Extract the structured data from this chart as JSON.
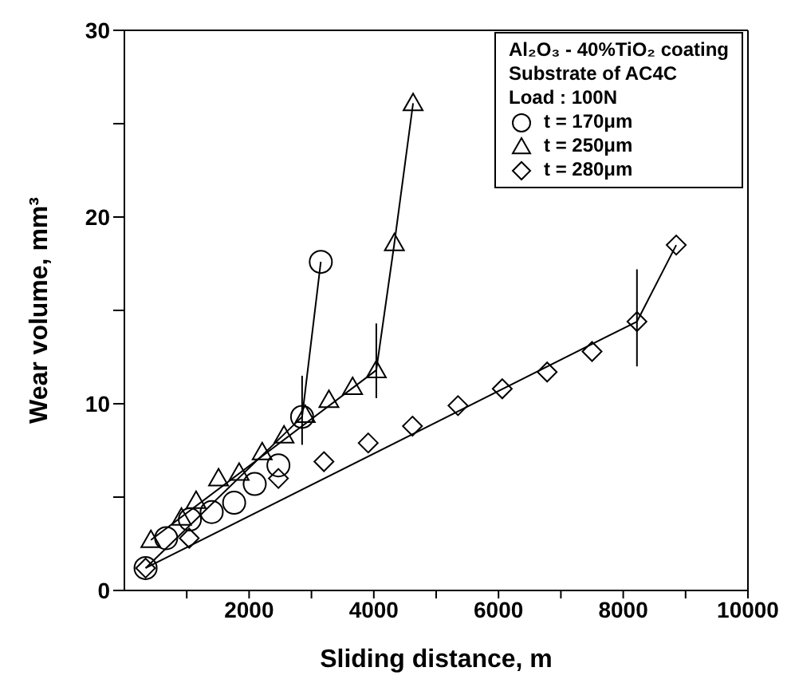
{
  "chart_data": {
    "type": "scatter",
    "xlabel": "Sliding distance, m",
    "ylabel": "Wear volume, mm³",
    "legend_title": "Al₂O₃ - 40%TiO₂ coating\nSubstrate of AC4C\nLoad : 100N",
    "legend": "top right",
    "grid": false,
    "xlim": [
      0,
      10000
    ],
    "ylim": [
      0,
      30
    ],
    "xticks": [
      {
        "value": 1000,
        "label": null
      },
      2000,
      {
        "value": 3000,
        "label": null
      },
      4000,
      {
        "value": 5000,
        "label": null
      },
      6000,
      {
        "value": 7000,
        "label": null
      },
      8000,
      {
        "value": 9000,
        "label": null
      },
      10000
    ],
    "yticks": [
      0,
      {
        "value": 5,
        "label": null
      },
      10,
      {
        "value": 15,
        "label": null
      },
      20,
      {
        "value": 25,
        "label": null
      },
      30
    ],
    "series": [
      {
        "name": "t = 170μm",
        "marker": "circle",
        "color": "#000000",
        "x": [
          340,
          670,
          1050,
          1400,
          1760,
          2090,
          2470,
          2850,
          3150
        ],
        "values": [
          1.2,
          2.8,
          3.8,
          4.2,
          4.7,
          5.7,
          6.7,
          9.3,
          17.6
        ],
        "errors": [
          null,
          null,
          null,
          null,
          null,
          null,
          null,
          [
            7.8,
            11.5
          ],
          null
        ]
      },
      {
        "name": "t = 250μm",
        "marker": "triangle",
        "color": "#000000",
        "x": [
          425,
          915,
          1150,
          1510,
          1840,
          2210,
          2560,
          2900,
          3280,
          3660,
          4040,
          4330,
          4630
        ],
        "values": [
          2.7,
          3.9,
          4.8,
          6.0,
          6.3,
          7.4,
          8.3,
          9.4,
          10.2,
          10.9,
          11.8,
          18.6,
          26.1
        ],
        "errors": [
          null,
          null,
          null,
          null,
          null,
          null,
          null,
          null,
          null,
          null,
          [
            10.3,
            14.3
          ],
          null,
          null
        ]
      },
      {
        "name": "t = 280μm",
        "marker": "diamond",
        "color": "#000000",
        "x": [
          340,
          1040,
          2470,
          3200,
          3910,
          4620,
          5350,
          6060,
          6780,
          7500,
          8220,
          8850
        ],
        "values": [
          1.2,
          2.8,
          6.0,
          6.9,
          7.9,
          8.8,
          9.9,
          10.8,
          11.7,
          12.8,
          14.4,
          18.5
        ],
        "errors": [
          null,
          null,
          null,
          null,
          null,
          null,
          null,
          null,
          null,
          null,
          [
            12.0,
            17.2
          ],
          null
        ]
      },
      {
        "type": "line",
        "marker": "none",
        "color": "#000000",
        "x": [
          340,
          2850,
          3150
        ],
        "values": [
          1.2,
          9.3,
          17.6
        ]
      },
      {
        "type": "line",
        "marker": "none",
        "color": "#000000",
        "x": [
          425,
          4040,
          4330,
          4630
        ],
        "values": [
          2.7,
          11.8,
          18.6,
          26.1
        ]
      },
      {
        "type": "line",
        "marker": "none",
        "color": "#000000",
        "x": [
          340,
          8220,
          8850
        ],
        "values": [
          1.2,
          14.4,
          18.5
        ]
      }
    ]
  }
}
